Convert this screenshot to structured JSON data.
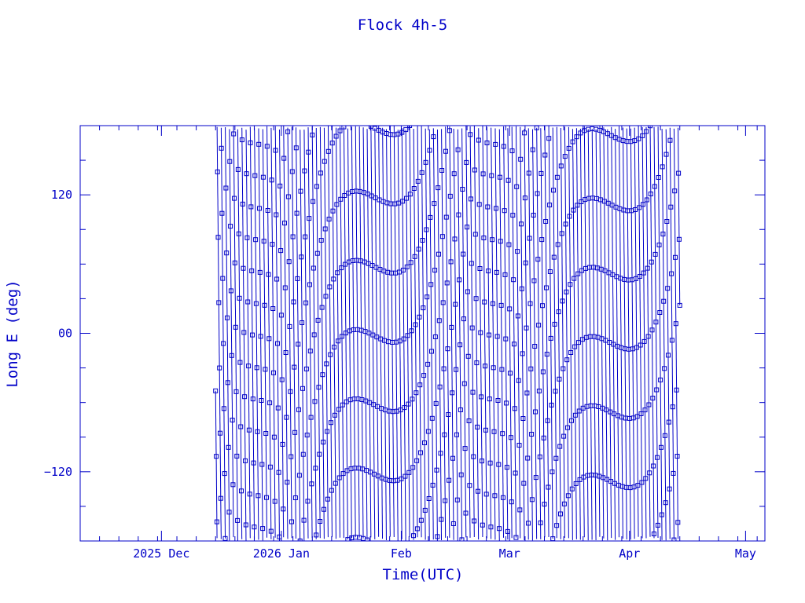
{
  "chart_data": {
    "type": "line",
    "title": "Flock 4h-5",
    "xlabel": "Time(UTC)",
    "ylabel": "Long E (deg)",
    "x_ticks": [
      {
        "date": "2025-12-01",
        "label": "2025 Dec"
      },
      {
        "date": "2026-01-01",
        "label": "2026 Jan"
      },
      {
        "date": "2026-02-01",
        "label": "Feb"
      },
      {
        "date": "2026-03-01",
        "label": "Mar"
      },
      {
        "date": "2026-04-01",
        "label": "Apr"
      },
      {
        "date": "2026-05-01",
        "label": "May"
      }
    ],
    "xlim": [
      "2025-11-10",
      "2026-05-06"
    ],
    "y_ticks": [
      {
        "value": 120,
        "label": "120"
      },
      {
        "value": 0,
        "label": "00"
      },
      {
        "value": -120,
        "label": "−120"
      }
    ],
    "ylim": [
      -180,
      180
    ],
    "data_range": [
      "2025-12-15",
      "2026-04-14"
    ],
    "marker": "square",
    "grid": false,
    "color": "#0000c8"
  }
}
